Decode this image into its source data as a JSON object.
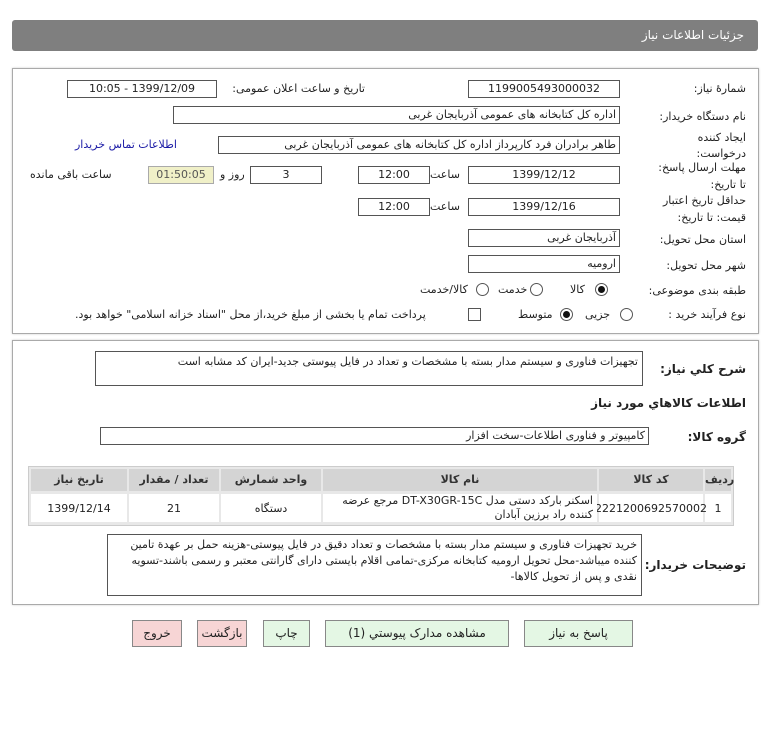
{
  "header": {
    "title": "جزئیات اطلاعات نیاز"
  },
  "form": {
    "need_number_label": "شمارهٔ نیاز:",
    "need_number": "1199005493000032",
    "announce_label": "تاریخ و ساعت اعلان عمومی:",
    "announce_value": "1399/12/09 - 10:05",
    "buyer_label": "نام دستگاه خریدار:",
    "buyer_value": "اداره کل کتابخانه های عمومی آذربایجان غربی",
    "creator_label_1": "ایجاد کننده",
    "creator_label_2": "درخواست:",
    "creator_value": "طاهر برادران فرد کارپرداز اداره کل کتابخانه های عمومی آذربایجان غربی",
    "contact_link": "اطلاعات تماس خریدار",
    "deadline_label_1": "مهلت ارسال پاسخ:",
    "deadline_label_2": "تا تاریخ:",
    "deadline_date": "1399/12/12",
    "time_label": "ساعت",
    "deadline_time": "12:00",
    "days_value": "3",
    "days_label": "روز و",
    "timer_value": "01:50:05",
    "remaining_label": "ساعت باقی مانده",
    "validity_label_1": "حداقل تاریخ اعتبار",
    "validity_label_2": "قیمت: تا تاریخ:",
    "validity_date": "1399/12/16",
    "validity_time": "12:00",
    "province_label": "استان محل تحویل:",
    "province_value": "آذربایجان غربی",
    "city_label": "شهر محل تحویل:",
    "city_value": "ارومیه",
    "category_label": "طبقه بندی موضوعی:",
    "category_options": [
      "کالا",
      "خدمت",
      "کالا/خدمت"
    ],
    "category_selected": "کالا",
    "process_label": "نوع فرآیند خرید :",
    "process_options": [
      "جزیی",
      "متوسط"
    ],
    "process_selected": "متوسط",
    "payment_text": "پرداخت تمام یا بخشی از مبلغ خرید،از محل \"اسناد خزانه اسلامی\" خواهد بود."
  },
  "details": {
    "desc_label": "شرح کلي نياز:",
    "desc_value": "تجهیزات فناوری و سیستم مدار بسته با مشخصات و تعداد در فایل پیوستی جدید-ایران کد مشابه است",
    "goods_header": "اطلاعات کالاهاي مورد نياز",
    "group_label": "گروه کالا:",
    "group_value": "کامپیوتر و فناوری اطلاعات-سخت افزار",
    "table": {
      "columns": [
        "ردیف",
        "کد کالا",
        "نام کالا",
        "واحد شمارش",
        "تعداد / مقدار",
        "تاریخ نیاز"
      ],
      "rows": [
        [
          "1",
          "2221200692570002",
          "اسکنر بارکد دستی مدل DT-X30GR-15C مرجع عرضه کننده راد برزین آبادان",
          "دستگاه",
          "21",
          "1399/12/14"
        ]
      ]
    },
    "notes_label": "توضیحات خریدار:",
    "notes_value": "خرید تجهیزات فناوری و سیستم مدار بسته با مشخصات و تعداد دقیق در فایل پیوستی-هزینه حمل بر عهدة تامین کننده میباشد-محل تحویل ارومیه کتابخانه مرکزی-تمامی اقلام بایستی دارای گارانتی معتبر و رسمی باشند-تسویه نقدی و پس از تحویل کالاها-"
  },
  "buttons": {
    "reply": "پاسخ به نياز",
    "attachments": "مشاهده مدارک پيوستي (1)",
    "print": "چاپ",
    "back": "بازگشت",
    "exit": "خروج"
  },
  "colors": {
    "header": "#7f7f7f",
    "link": "#1a1aa6",
    "timer_bg": "#f0f0c8",
    "button_green": "#e4f7e4",
    "button_pink": "#f7d5d5"
  }
}
